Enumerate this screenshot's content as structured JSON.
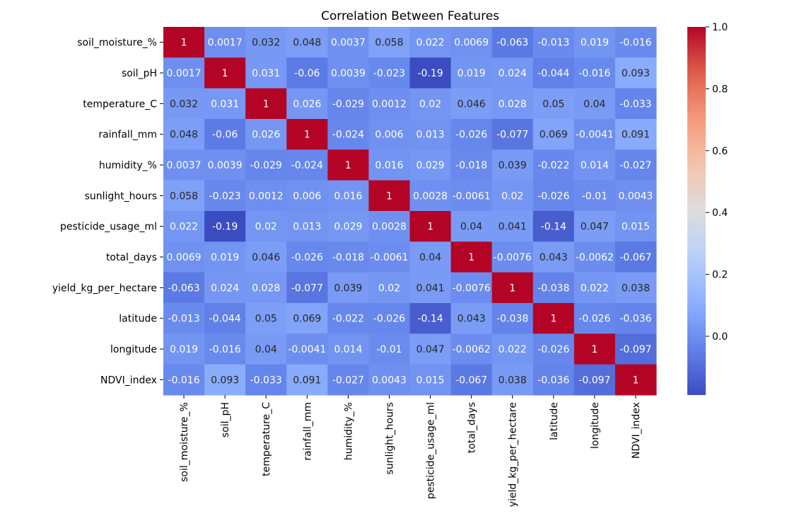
{
  "chart_data": {
    "type": "heatmap",
    "title": "Correlation Between Features",
    "colormap": "coolwarm",
    "vmin": -0.19,
    "vmax": 1.0,
    "labels": [
      "soil_moisture_%",
      "soil_pH",
      "temperature_C",
      "rainfall_mm",
      "humidity_%",
      "sunlight_hours",
      "pesticide_usage_ml",
      "total_days",
      "yield_kg_per_hectare",
      "latitude",
      "longitude",
      "NDVI_index"
    ],
    "matrix": [
      [
        "1",
        "0.0017",
        "0.032",
        "0.048",
        "0.0037",
        "0.058",
        "0.022",
        "0.0069",
        "-0.063",
        "-0.013",
        "0.019",
        "-0.016"
      ],
      [
        "0.0017",
        "1",
        "0.031",
        "-0.06",
        "0.0039",
        "-0.023",
        "-0.19",
        "0.019",
        "0.024",
        "-0.044",
        "-0.016",
        "0.093"
      ],
      [
        "0.032",
        "0.031",
        "1",
        "0.026",
        "-0.029",
        "0.0012",
        "0.02",
        "0.046",
        "0.028",
        "0.05",
        "0.04",
        "-0.033"
      ],
      [
        "0.048",
        "-0.06",
        "0.026",
        "1",
        "-0.024",
        "0.006",
        "0.013",
        "-0.026",
        "-0.077",
        "0.069",
        "-0.0041",
        "0.091"
      ],
      [
        "0.0037",
        "0.0039",
        "-0.029",
        "-0.024",
        "1",
        "0.016",
        "0.029",
        "-0.018",
        "0.039",
        "-0.022",
        "0.014",
        "-0.027"
      ],
      [
        "0.058",
        "-0.023",
        "0.0012",
        "0.006",
        "0.016",
        "1",
        "0.0028",
        "-0.0061",
        "0.02",
        "-0.026",
        "-0.01",
        "0.0043"
      ],
      [
        "0.022",
        "-0.19",
        "0.02",
        "0.013",
        "0.029",
        "0.0028",
        "1",
        "0.04",
        "0.041",
        "-0.14",
        "0.047",
        "0.015"
      ],
      [
        "0.0069",
        "0.019",
        "0.046",
        "-0.026",
        "-0.018",
        "-0.0061",
        "0.04",
        "1",
        "-0.0076",
        "0.043",
        "-0.0062",
        "-0.067"
      ],
      [
        "-0.063",
        "0.024",
        "0.028",
        "-0.077",
        "0.039",
        "0.02",
        "0.041",
        "-0.0076",
        "1",
        "-0.038",
        "0.022",
        "0.038"
      ],
      [
        "-0.013",
        "-0.044",
        "0.05",
        "0.069",
        "-0.022",
        "-0.026",
        "-0.14",
        "0.043",
        "-0.038",
        "1",
        "-0.026",
        "-0.036"
      ],
      [
        "0.019",
        "-0.016",
        "0.04",
        "-0.0041",
        "0.014",
        "-0.01",
        "0.047",
        "-0.0062",
        "0.022",
        "-0.026",
        "1",
        "-0.097"
      ],
      [
        "-0.016",
        "0.093",
        "-0.033",
        "0.091",
        "-0.027",
        "0.0043",
        "0.015",
        "-0.067",
        "0.038",
        "-0.036",
        "-0.097",
        "1"
      ]
    ],
    "colorbar_ticks": [
      "1.0",
      "0.8",
      "0.6",
      "0.4",
      "0.2",
      "0.0"
    ]
  }
}
